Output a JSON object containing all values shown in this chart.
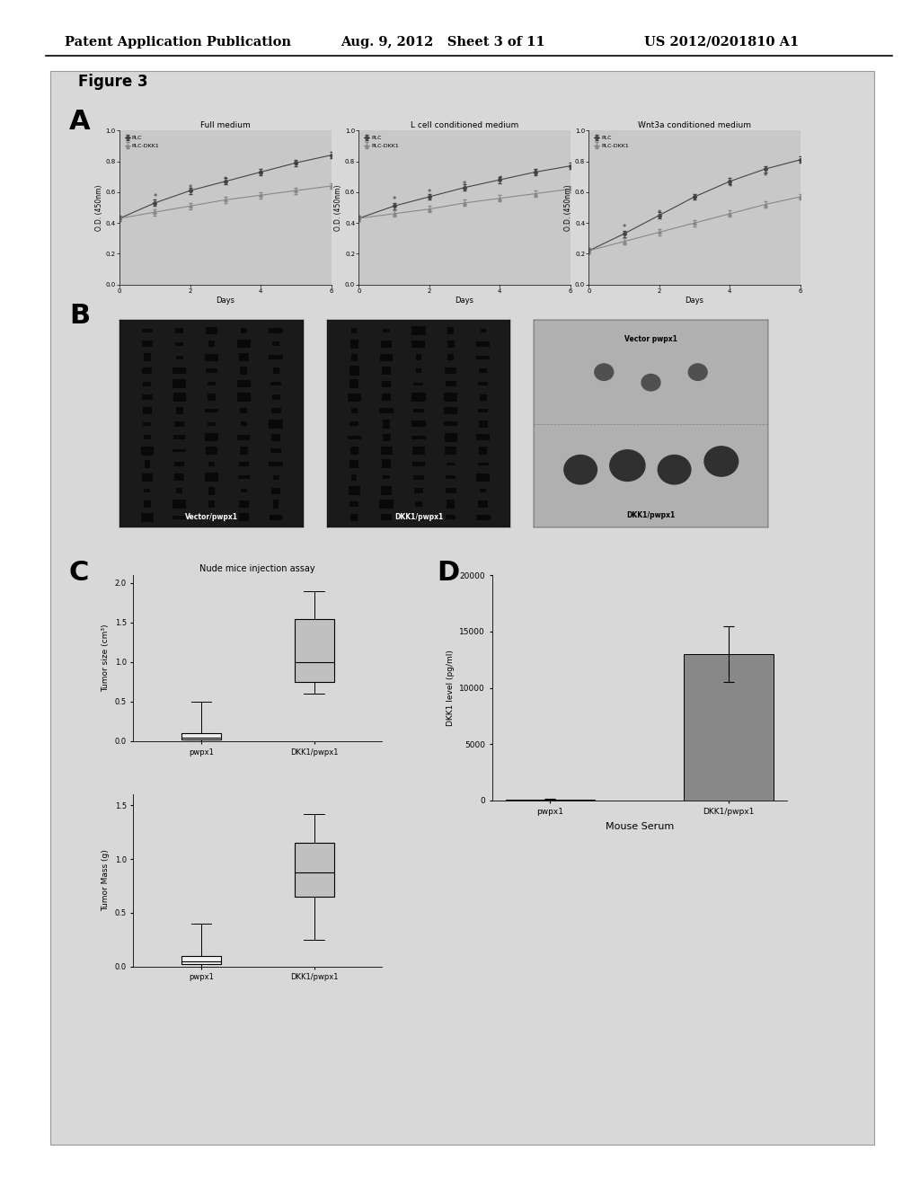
{
  "header_left": "Patent Application Publication",
  "header_mid": "Aug. 9, 2012   Sheet 3 of 11",
  "header_right": "US 2012/0201810 A1",
  "figure_label": "Figure 3",
  "panel_A_label": "A",
  "panel_B_label": "B",
  "panel_C_label": "C",
  "panel_D_label": "D",
  "subplot_titles": [
    "Full medium",
    "L cell conditioned medium",
    "Wnt3a conditioned medium"
  ],
  "xlabel": "Days",
  "ylabels": [
    "O.D. (450nm)",
    "O.D. (450nm)",
    "O.D. (450nm)"
  ],
  "xlim": [
    0,
    6
  ],
  "ylim": [
    0.0,
    1.0
  ],
  "xticks": [
    0,
    2,
    4,
    6
  ],
  "yticks": [
    0.0,
    0.2,
    0.4,
    0.6,
    0.8,
    1.0
  ],
  "plc_days": [
    0,
    1,
    2,
    3,
    4,
    5,
    6
  ],
  "plc_values": [
    0.43,
    0.53,
    0.61,
    0.67,
    0.73,
    0.79,
    0.84
  ],
  "plc_err": [
    0.02,
    0.02,
    0.02,
    0.02,
    0.02,
    0.02,
    0.02
  ],
  "plc_dkk1_values": [
    0.43,
    0.47,
    0.51,
    0.55,
    0.58,
    0.61,
    0.64
  ],
  "plc_dkk1_err": [
    0.02,
    0.02,
    0.02,
    0.02,
    0.02,
    0.02,
    0.02
  ],
  "plc_values_L": [
    0.43,
    0.51,
    0.57,
    0.63,
    0.68,
    0.73,
    0.77
  ],
  "plc_dkk1_values_L": [
    0.43,
    0.46,
    0.49,
    0.53,
    0.56,
    0.59,
    0.62
  ],
  "plc_values_W": [
    0.22,
    0.33,
    0.45,
    0.57,
    0.67,
    0.75,
    0.81
  ],
  "plc_dkk1_values_W": [
    0.22,
    0.28,
    0.34,
    0.4,
    0.46,
    0.52,
    0.57
  ],
  "legend_PLC": "PLC",
  "legend_PLCDKK1": "PLC-DKK1",
  "boxplot_C1_title": "Nude mice injection assay",
  "boxplot_C1_ylabel": "Tumor size (cm³)",
  "boxplot_C1_pwpx1": {
    "median": 0.05,
    "q1": 0.02,
    "q3": 0.1,
    "whislo": 0.0,
    "whishi": 0.5
  },
  "boxplot_C1_DKK1": {
    "median": 1.0,
    "q1": 0.75,
    "q3": 1.55,
    "whislo": 0.6,
    "whishi": 1.9
  },
  "boxplot_C2_ylabel": "Tumor Mass (g)",
  "boxplot_C2_pwpx1": {
    "median": 0.05,
    "q1": 0.02,
    "q3": 0.1,
    "whislo": 0.0,
    "whishi": 0.4
  },
  "boxplot_C2_DKK1": {
    "median": 0.88,
    "q1": 0.65,
    "q3": 1.15,
    "whislo": 0.25,
    "whishi": 1.42
  },
  "bar_D_title": "Mouse Serum",
  "bar_D_ylabel": "DKK1 level (pg/ml)",
  "bar_D_categories": [
    "pwpx1",
    "DKK1/pwpx1"
  ],
  "bar_D_values": [
    100,
    13000
  ],
  "bar_D_errors": [
    50,
    2500
  ],
  "bar_D_ylim": [
    0,
    20000
  ],
  "bar_D_yticks": [
    0,
    5000,
    10000,
    15000,
    20000
  ],
  "bg_color": "#d8d8d8",
  "plot_bg": "#c8c8c8",
  "line_color_PLC": "#444444",
  "line_color_DKK1": "#888888",
  "box_color_pwpx1": "#f0f0f0",
  "box_color_dkk1": "#c0c0c0",
  "bar_color_empty": "#e8e8e8",
  "bar_color_filled": "#888888"
}
